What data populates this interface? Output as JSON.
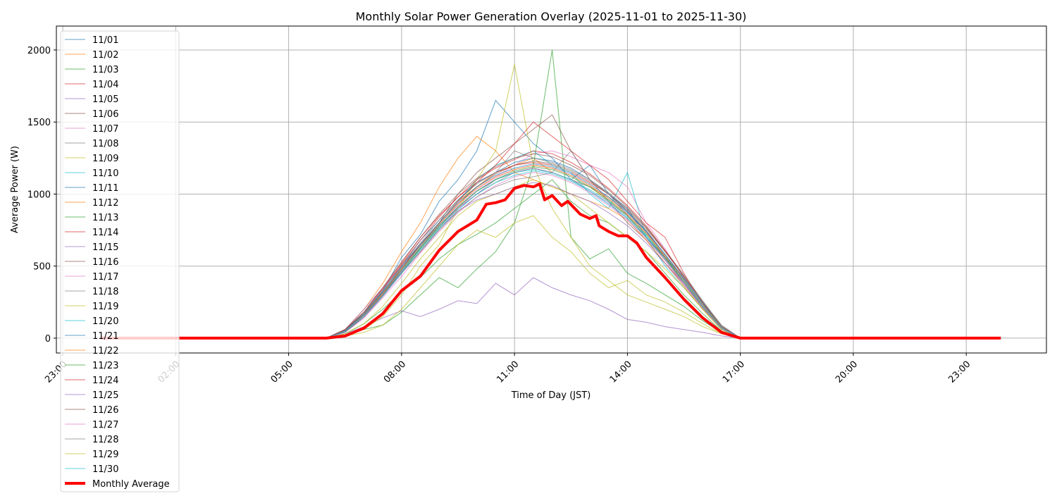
{
  "chart_data": {
    "type": "line",
    "title": "Monthly Solar Power Generation Overlay (2025-11-01 to 2025-11-30)",
    "xlabel": "Time of Day (JST)",
    "ylabel": "Average Power (W)",
    "ylim": [
      -103,
      2166
    ],
    "y_ticks": [
      0,
      500,
      1000,
      1500,
      2000
    ],
    "x_ticks": [
      "23:00",
      "02:00",
      "05:00",
      "08:00",
      "11:00",
      "14:00",
      "17:00",
      "20:00",
      "23:00"
    ],
    "grid": true,
    "legend_placement": "upper-left",
    "colors": [
      "#1f77b4",
      "#ff7f0e",
      "#2ca02c",
      "#d62728",
      "#9467bd",
      "#8c564b",
      "#e377c2",
      "#7f7f7f",
      "#bcbd22",
      "#17becf"
    ],
    "average_color": "#ff0000",
    "x": [
      "00:00",
      "06:00",
      "06:30",
      "07:00",
      "07:30",
      "08:00",
      "08:30",
      "09:00",
      "09:30",
      "10:00",
      "10:30",
      "11:00",
      "11:30",
      "12:00",
      "12:30",
      "13:00",
      "13:30",
      "14:00",
      "14:30",
      "15:00",
      "15:30",
      "16:00",
      "16:30",
      "17:00",
      "23:55"
    ],
    "series": [
      {
        "name": "11/01",
        "values": [
          0,
          0,
          60,
          170,
          330,
          560,
          720,
          950,
          1100,
          1300,
          1650,
          1500,
          1350,
          1250,
          1100,
          1200,
          1000,
          900,
          700,
          560,
          400,
          220,
          80,
          0,
          0
        ]
      },
      {
        "name": "11/02",
        "values": [
          0,
          0,
          50,
          150,
          300,
          500,
          650,
          800,
          950,
          1050,
          1150,
          1200,
          1250,
          1150,
          1100,
          1050,
          950,
          850,
          700,
          550,
          380,
          220,
          70,
          0,
          0
        ]
      },
      {
        "name": "11/03",
        "values": [
          0,
          0,
          20,
          60,
          90,
          180,
          300,
          420,
          350,
          480,
          600,
          800,
          1200,
          2000,
          700,
          550,
          620,
          450,
          380,
          300,
          220,
          120,
          40,
          0,
          0
        ]
      },
      {
        "name": "11/04",
        "values": [
          0,
          0,
          60,
          180,
          350,
          520,
          700,
          850,
          980,
          1080,
          1150,
          1200,
          1220,
          1200,
          1150,
          1080,
          1000,
          880,
          740,
          560,
          380,
          220,
          80,
          0,
          0
        ]
      },
      {
        "name": "11/05",
        "values": [
          0,
          0,
          30,
          80,
          140,
          190,
          150,
          200,
          260,
          240,
          380,
          300,
          420,
          350,
          300,
          260,
          200,
          130,
          110,
          80,
          60,
          40,
          15,
          0,
          0
        ]
      },
      {
        "name": "11/06",
        "values": [
          0,
          0,
          50,
          160,
          320,
          480,
          650,
          800,
          1000,
          1150,
          1250,
          1350,
          1450,
          1550,
          1300,
          1100,
          950,
          800,
          680,
          520,
          380,
          210,
          70,
          0,
          0
        ]
      },
      {
        "name": "11/07",
        "values": [
          0,
          0,
          40,
          140,
          290,
          460,
          620,
          780,
          920,
          1030,
          1120,
          1200,
          1280,
          1300,
          1260,
          1200,
          1150,
          1050,
          800,
          620,
          420,
          250,
          80,
          0,
          0
        ]
      },
      {
        "name": "11/08",
        "values": [
          0,
          0,
          60,
          180,
          320,
          480,
          620,
          780,
          900,
          1000,
          1080,
          1150,
          1180,
          1150,
          1100,
          1050,
          980,
          880,
          750,
          580,
          420,
          250,
          90,
          0,
          0
        ]
      },
      {
        "name": "11/09",
        "values": [
          0,
          0,
          20,
          60,
          150,
          300,
          500,
          650,
          900,
          1100,
          1300,
          1900,
          1200,
          900,
          700,
          500,
          400,
          300,
          250,
          200,
          150,
          80,
          30,
          0,
          0
        ]
      },
      {
        "name": "11/10",
        "values": [
          0,
          0,
          40,
          150,
          300,
          480,
          640,
          800,
          950,
          1100,
          1200,
          1250,
          1300,
          1200,
          1150,
          1000,
          900,
          1150,
          700,
          500,
          350,
          200,
          60,
          0,
          0
        ]
      },
      {
        "name": "11/11",
        "values": [
          0,
          0,
          50,
          170,
          330,
          500,
          680,
          820,
          960,
          1080,
          1150,
          1220,
          1250,
          1230,
          1180,
          1100,
          1000,
          880,
          740,
          580,
          410,
          240,
          80,
          0,
          0
        ]
      },
      {
        "name": "11/12",
        "values": [
          0,
          0,
          60,
          200,
          380,
          600,
          800,
          1050,
          1250,
          1400,
          1300,
          1150,
          1100,
          1050,
          1000,
          950,
          900,
          820,
          680,
          520,
          360,
          200,
          60,
          0,
          0
        ]
      },
      {
        "name": "11/13",
        "values": [
          0,
          0,
          30,
          100,
          200,
          320,
          420,
          550,
          650,
          720,
          800,
          900,
          1000,
          1100,
          950,
          850,
          800,
          700,
          600,
          450,
          300,
          170,
          50,
          0,
          0
        ]
      },
      {
        "name": "11/14",
        "values": [
          0,
          0,
          50,
          160,
          310,
          480,
          650,
          800,
          950,
          1080,
          1200,
          1350,
          1500,
          1400,
          1300,
          1200,
          1100,
          950,
          800,
          700,
          450,
          240,
          70,
          0,
          0
        ]
      },
      {
        "name": "11/15",
        "values": [
          0,
          0,
          60,
          200,
          350,
          500,
          650,
          780,
          900,
          1000,
          1100,
          1150,
          1180,
          1150,
          1100,
          1020,
          940,
          830,
          700,
          540,
          380,
          220,
          70,
          0,
          0
        ]
      },
      {
        "name": "11/16",
        "values": [
          0,
          0,
          40,
          150,
          300,
          470,
          630,
          790,
          930,
          1050,
          1140,
          1200,
          1230,
          1210,
          1160,
          1090,
          1000,
          890,
          760,
          600,
          430,
          250,
          80,
          0,
          0
        ]
      },
      {
        "name": "11/17",
        "values": [
          0,
          0,
          45,
          150,
          290,
          450,
          600,
          760,
          900,
          1020,
          1110,
          1170,
          1200,
          1180,
          1130,
          1060,
          970,
          860,
          730,
          570,
          400,
          230,
          70,
          0,
          0
        ]
      },
      {
        "name": "11/18",
        "values": [
          0,
          0,
          55,
          170,
          330,
          500,
          660,
          820,
          960,
          1070,
          1150,
          1300,
          1250,
          1220,
          1170,
          1100,
          1010,
          900,
          770,
          610,
          440,
          260,
          85,
          0,
          0
        ]
      },
      {
        "name": "11/19",
        "values": [
          0,
          0,
          30,
          100,
          220,
          380,
          550,
          700,
          850,
          950,
          1000,
          1050,
          1100,
          1050,
          1000,
          900,
          800,
          700,
          600,
          480,
          350,
          200,
          60,
          0,
          0
        ]
      },
      {
        "name": "11/20",
        "values": [
          0,
          0,
          50,
          160,
          310,
          470,
          630,
          780,
          910,
          1020,
          1100,
          1150,
          1170,
          1150,
          1100,
          1030,
          950,
          840,
          710,
          560,
          400,
          230,
          75,
          0,
          0
        ]
      },
      {
        "name": "11/21",
        "values": [
          0,
          0,
          55,
          165,
          320,
          490,
          650,
          800,
          940,
          1050,
          1130,
          1180,
          1210,
          1190,
          1140,
          1070,
          980,
          870,
          740,
          580,
          410,
          240,
          80,
          0,
          0
        ]
      },
      {
        "name": "11/22",
        "values": [
          0,
          0,
          50,
          160,
          310,
          480,
          640,
          790,
          930,
          1040,
          1120,
          1170,
          1200,
          1180,
          1130,
          1060,
          970,
          860,
          730,
          570,
          400,
          230,
          75,
          0,
          0
        ]
      },
      {
        "name": "11/23",
        "values": [
          0,
          0,
          45,
          150,
          300,
          460,
          620,
          770,
          910,
          1020,
          1100,
          1160,
          1190,
          1170,
          1120,
          1050,
          960,
          850,
          720,
          560,
          390,
          220,
          70,
          0,
          0
        ]
      },
      {
        "name": "11/24",
        "values": [
          0,
          0,
          60,
          180,
          340,
          510,
          680,
          840,
          980,
          1100,
          1180,
          1240,
          1300,
          1280,
          1220,
          1140,
          1040,
          920,
          780,
          610,
          430,
          250,
          80,
          0,
          0
        ]
      },
      {
        "name": "11/25",
        "values": [
          0,
          0,
          50,
          150,
          300,
          460,
          600,
          760,
          880,
          960,
          1000,
          1050,
          1080,
          1060,
          1000,
          950,
          870,
          780,
          660,
          520,
          370,
          210,
          65,
          0,
          0
        ]
      },
      {
        "name": "11/26",
        "values": [
          0,
          0,
          60,
          180,
          350,
          530,
          700,
          860,
          1000,
          1110,
          1190,
          1250,
          1280,
          1260,
          1200,
          1130,
          1030,
          910,
          770,
          600,
          430,
          250,
          80,
          0,
          0
        ]
      },
      {
        "name": "11/27",
        "values": [
          0,
          0,
          40,
          140,
          280,
          430,
          590,
          740,
          870,
          980,
          1060,
          1120,
          1150,
          1130,
          1080,
          1010,
          920,
          820,
          690,
          540,
          380,
          220,
          70,
          0,
          0
        ]
      },
      {
        "name": "11/28",
        "values": [
          0,
          0,
          50,
          160,
          300,
          450,
          600,
          750,
          880,
          980,
          1050,
          1100,
          1120,
          1150,
          1300,
          1100,
          1000,
          850,
          700,
          560,
          420,
          250,
          80,
          0,
          0
        ]
      },
      {
        "name": "11/29",
        "values": [
          0,
          0,
          15,
          40,
          90,
          200,
          350,
          500,
          650,
          750,
          700,
          800,
          850,
          700,
          600,
          450,
          350,
          400,
          300,
          250,
          180,
          100,
          30,
          0,
          0
        ]
      },
      {
        "name": "11/30",
        "values": [
          0,
          0,
          45,
          150,
          290,
          450,
          610,
          760,
          890,
          1000,
          1080,
          1130,
          1160,
          1140,
          1090,
          1020,
          930,
          830,
          700,
          550,
          390,
          220,
          70,
          0,
          0
        ]
      }
    ],
    "average": {
      "name": "Monthly Average",
      "x": [
        "00:00",
        "06:00",
        "06:30",
        "07:00",
        "07:30",
        "08:00",
        "08:30",
        "09:00",
        "09:30",
        "10:00",
        "10:15",
        "10:30",
        "10:45",
        "11:00",
        "11:15",
        "11:30",
        "11:40",
        "11:48",
        "12:00",
        "12:15",
        "12:25",
        "12:45",
        "13:00",
        "13:10",
        "13:15",
        "13:30",
        "13:45",
        "14:00",
        "14:15",
        "14:30",
        "14:45",
        "15:00",
        "15:30",
        "16:00",
        "16:30",
        "17:00",
        "23:55"
      ],
      "values": [
        0,
        0,
        15,
        70,
        170,
        330,
        430,
        610,
        740,
        820,
        930,
        940,
        960,
        1040,
        1060,
        1050,
        1070,
        960,
        990,
        920,
        950,
        860,
        830,
        850,
        780,
        740,
        710,
        710,
        660,
        560,
        490,
        420,
        270,
        140,
        40,
        0,
        0
      ]
    }
  }
}
